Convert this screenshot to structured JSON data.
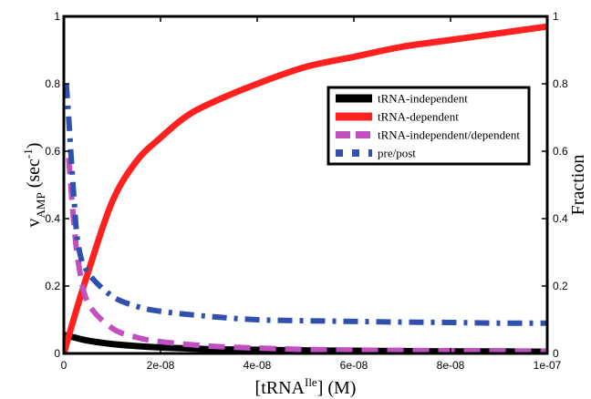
{
  "chart_data": {
    "type": "line",
    "x_axis": {
      "label_main": "[tRNA",
      "label_sup": "Ile",
      "label_tail": "] (M)",
      "range": [
        0,
        1e-07
      ],
      "ticks": [
        0,
        2e-08,
        4e-08,
        6e-08,
        8e-08,
        1e-07
      ],
      "tick_labels": [
        "0",
        "2e-08",
        "4e-08",
        "6e-08",
        "8e-08",
        "1e-07"
      ]
    },
    "y_left": {
      "label_v": "v",
      "label_sub": "AMP",
      "label_unit": " (sec",
      "label_sup": "-1",
      "label_close": ")",
      "range": [
        0,
        1
      ],
      "ticks": [
        0,
        0.2,
        0.4,
        0.6,
        0.8,
        1
      ],
      "tick_labels": [
        "0",
        "0.2",
        "0.4",
        "0.6",
        "0.8",
        "1"
      ]
    },
    "y_right": {
      "label": "Fraction",
      "range": [
        0,
        1
      ],
      "ticks": [
        0,
        0.2,
        0.4,
        0.6,
        0.8,
        1
      ],
      "tick_labels": [
        "0",
        "0.2",
        "0.4",
        "0.6",
        "0.8",
        "1"
      ]
    },
    "legend_position": "upper-right",
    "series": [
      {
        "name": "tRNA-independent",
        "color": "#000000",
        "style": "solid",
        "points": [
          [
            0,
            0.055
          ],
          [
            2e-09,
            0.048
          ],
          [
            5e-09,
            0.038
          ],
          [
            1e-08,
            0.028
          ],
          [
            1.5e-08,
            0.022
          ],
          [
            2e-08,
            0.018
          ],
          [
            3e-08,
            0.013
          ],
          [
            4e-08,
            0.011
          ],
          [
            5e-08,
            0.009
          ],
          [
            6e-08,
            0.008
          ],
          [
            7e-08,
            0.007
          ],
          [
            8e-08,
            0.006
          ],
          [
            9e-08,
            0.006
          ],
          [
            1e-07,
            0.005
          ]
        ]
      },
      {
        "name": "tRNA-dependent",
        "color": "#ff2020",
        "style": "solid",
        "points": [
          [
            0,
            0
          ],
          [
            2e-09,
            0.1
          ],
          [
            5e-09,
            0.24
          ],
          [
            1e-08,
            0.45
          ],
          [
            1.5e-08,
            0.57
          ],
          [
            2e-08,
            0.64
          ],
          [
            2.5e-08,
            0.7
          ],
          [
            3e-08,
            0.74
          ],
          [
            4e-08,
            0.8
          ],
          [
            5e-08,
            0.85
          ],
          [
            6e-08,
            0.88
          ],
          [
            7e-08,
            0.91
          ],
          [
            8e-08,
            0.93
          ],
          [
            9e-08,
            0.95
          ],
          [
            1e-07,
            0.97
          ]
        ]
      },
      {
        "name": "tRNA-independent/dependent",
        "color": "#c050c0",
        "style": "dashed",
        "points": [
          [
            1e-09,
            0.58
          ],
          [
            2e-09,
            0.4
          ],
          [
            3e-09,
            0.27
          ],
          [
            5e-09,
            0.15
          ],
          [
            1e-08,
            0.075
          ],
          [
            1.5e-08,
            0.048
          ],
          [
            2e-08,
            0.035
          ],
          [
            3e-08,
            0.022
          ],
          [
            4e-08,
            0.016
          ],
          [
            5e-08,
            0.012
          ],
          [
            6e-08,
            0.01
          ],
          [
            7e-08,
            0.009
          ],
          [
            8e-08,
            0.008
          ],
          [
            9e-08,
            0.007
          ],
          [
            1e-07,
            0.006
          ]
        ]
      },
      {
        "name": "pre/post",
        "color": "#3050b0",
        "style": "dashdot",
        "points": [
          [
            5e-10,
            0.8
          ],
          [
            1e-09,
            0.7
          ],
          [
            2e-09,
            0.48
          ],
          [
            3e-09,
            0.32
          ],
          [
            5e-09,
            0.24
          ],
          [
            1e-08,
            0.17
          ],
          [
            1.5e-08,
            0.14
          ],
          [
            2e-08,
            0.125
          ],
          [
            3e-08,
            0.11
          ],
          [
            4e-08,
            0.1
          ],
          [
            5e-08,
            0.097
          ],
          [
            6e-08,
            0.095
          ],
          [
            7e-08,
            0.093
          ],
          [
            8e-08,
            0.092
          ],
          [
            9e-08,
            0.09
          ],
          [
            1e-07,
            0.09
          ]
        ]
      }
    ]
  }
}
